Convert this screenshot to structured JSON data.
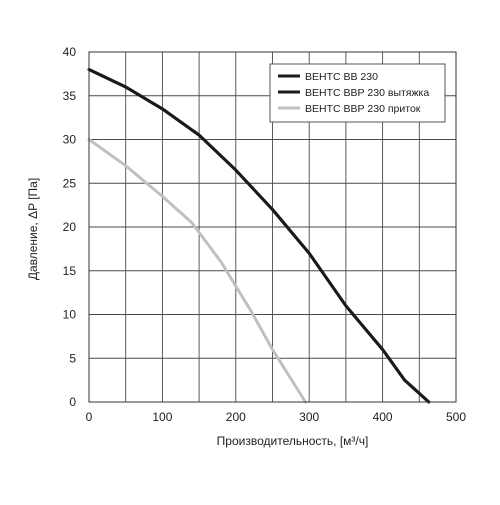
{
  "chart_data": {
    "type": "line",
    "title": "",
    "xlabel": "Производительность, [м³/ч]",
    "ylabel": "Давление, ΔP [Па]",
    "xlim": [
      0,
      500
    ],
    "ylim": [
      0,
      40
    ],
    "x_ticks": [
      0,
      100,
      200,
      300,
      400,
      500
    ],
    "y_ticks": [
      0,
      5,
      10,
      15,
      20,
      25,
      30,
      35,
      40
    ],
    "grid": true,
    "legend_position": "top-right",
    "series": [
      {
        "name": "ВЕНТС ВВ 230",
        "color": "#1a1a1a",
        "x": [
          0,
          50,
          100,
          150,
          200,
          250,
          300,
          350,
          400,
          430,
          463
        ],
        "y": [
          38,
          36,
          33.5,
          30.5,
          26.5,
          22,
          17,
          11,
          6,
          2.5,
          0
        ]
      },
      {
        "name": "ВЕНТС ВВР 230 вытяжка",
        "color": "#1a1a1a",
        "x": [
          0,
          50,
          100,
          150,
          200,
          250,
          300,
          350,
          400,
          430,
          463
        ],
        "y": [
          38,
          36,
          33.5,
          30.5,
          26.5,
          22,
          17,
          11,
          6,
          2.5,
          0
        ]
      },
      {
        "name": "ВЕНТС ВВР 230 приток",
        "color": "#c0c0c0",
        "x": [
          0,
          50,
          100,
          140,
          180,
          220,
          250,
          280,
          295
        ],
        "y": [
          30,
          27,
          23.5,
          20.5,
          16,
          10.5,
          6,
          2,
          0
        ]
      }
    ]
  }
}
